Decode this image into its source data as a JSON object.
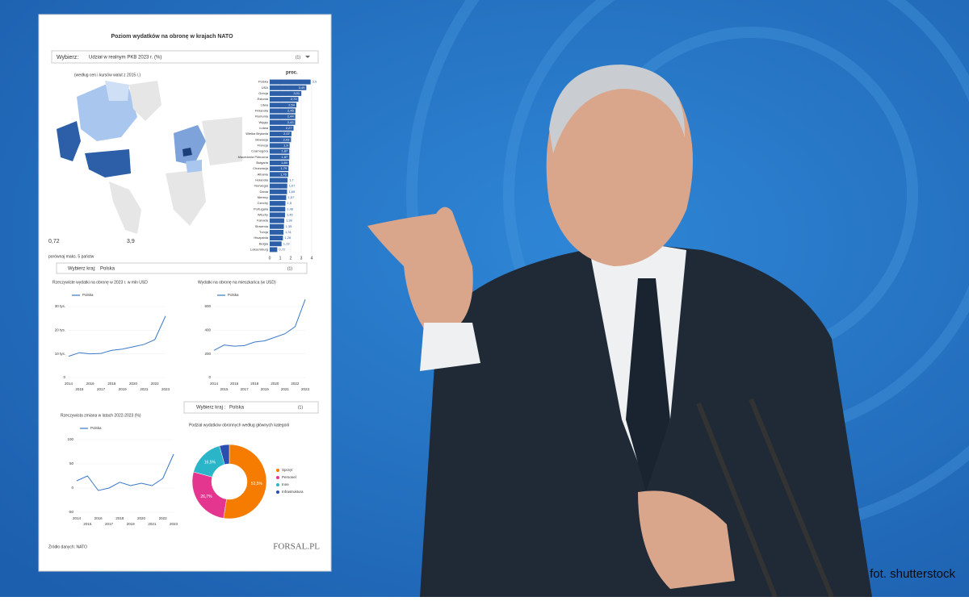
{
  "photo_credit": "fot. shutterstock",
  "panel": {
    "title": "Poziom wydatków na obronę w krajach NATO",
    "selector": {
      "label": "Wybierz:",
      "value": "Udział w realnym PKB 2023 r. (%)",
      "count": "(1)"
    },
    "map_note": "(według cen i kursów walut z 2015 r.)",
    "map_min": "0,72",
    "map_max": "3,9",
    "compare_note": "porównaj maks. 5 państw",
    "country_selector": {
      "label": "Wybierz kraj:",
      "value": "Polska",
      "count": "(1)"
    },
    "country_selector_2": {
      "label": "Wybierz kraj :",
      "value": "Polska",
      "count": "(1)"
    },
    "source": "Źródło danych: NATO",
    "logo": "FORSAL.PL"
  },
  "chart_data": [
    {
      "type": "hbar",
      "xlabel": "proc.",
      "color": "#2c5fa8",
      "categories": [
        "Polska",
        "USA",
        "Grecja",
        "Estonia",
        "Litwa",
        "Finlandia",
        "Rumunia",
        "Węgry",
        "Łotwa",
        "Wielka Brytania",
        "Słowacja",
        "Francja",
        "Czarnogóra",
        "Macedonia Północna",
        "Bułgaria",
        "Chorwacja",
        "Albania",
        "Holandia",
        "Norwegia",
        "Dania",
        "Niemcy",
        "Czechy",
        "Portugalia",
        "Włochy",
        "Kanada",
        "Słowenia",
        "Turcja",
        "Hiszpania",
        "Belgia",
        "Luksemburg"
      ],
      "values": [
        3.9,
        3.49,
        3.01,
        2.73,
        2.54,
        2.45,
        2.44,
        2.43,
        2.27,
        2.07,
        2.03,
        1.9,
        1.87,
        1.87,
        1.84,
        1.79,
        1.76,
        1.7,
        1.67,
        1.65,
        1.57,
        1.5,
        1.48,
        1.46,
        1.38,
        1.35,
        1.31,
        1.26,
        1.13,
        0.72
      ],
      "value_labels": [
        "3,9",
        "3,49",
        "3,01",
        "2,73",
        "2,54",
        "2,45",
        "2,44",
        "2,43",
        "2,27",
        "2,07",
        "2,03",
        "1,9",
        "1,87",
        "1,87",
        "1,84",
        "1,79",
        "1,76",
        "1,7",
        "1,67",
        "1,65",
        "1,57",
        "1,5",
        "1,48",
        "1,46",
        "1,38",
        "1,35",
        "1,31",
        "1,26",
        "1,13",
        "0,72"
      ],
      "xlim": [
        0,
        4
      ],
      "xticks": [
        0,
        1,
        2,
        3,
        4
      ]
    },
    {
      "type": "line",
      "title": "Rzeczywiste wydatki na obronę w 2023 r. w mln USD",
      "categories": [
        "2014",
        "2015",
        "2016",
        "2017",
        "2018",
        "2019",
        "2020",
        "2021",
        "2022",
        "2023"
      ],
      "series": [
        {
          "name": "Polska",
          "color": "#3a78c8",
          "values": [
            9000,
            10500,
            10000,
            10200,
            11500,
            12000,
            13000,
            14000,
            16000,
            26000
          ]
        }
      ],
      "ylim": [
        0,
        30000
      ],
      "yticks": [
        0,
        {
          "value": 10000,
          "label": "10 tys."
        },
        {
          "value": 20000,
          "label": "20 tys."
        },
        {
          "value": 30000,
          "label": "30 tys."
        }
      ]
    },
    {
      "type": "line",
      "title": "Wydatki na obronę na mieszkańca (w USD)",
      "categories": [
        "2014",
        "2015",
        "2016",
        "2017",
        "2018",
        "2019",
        "2020",
        "2021",
        "2022",
        "2023"
      ],
      "series": [
        {
          "name": "Polska",
          "color": "#3a78c8",
          "values": [
            230,
            275,
            265,
            270,
            300,
            310,
            340,
            370,
            430,
            660
          ]
        }
      ],
      "ylim": [
        0,
        600
      ],
      "yticks": [
        0,
        200,
        400,
        600
      ]
    },
    {
      "type": "line",
      "title": "Rzeczywista zmiana w latach 2022-2023 (%)",
      "categories": [
        "2014",
        "2015",
        "2016",
        "2017",
        "2018",
        "2019",
        "2020",
        "2021",
        "2022",
        "2023"
      ],
      "series": [
        {
          "name": "Polska",
          "color": "#3a78c8",
          "values": [
            15,
            25,
            -5,
            0,
            12,
            5,
            10,
            5,
            20,
            70
          ]
        }
      ],
      "ylim": [
        -50,
        100
      ],
      "yticks": [
        -50,
        0,
        50,
        100
      ]
    },
    {
      "type": "pie",
      "title": "Podział wydatków obronnych według głównych kategorii",
      "categories": [
        "Sprzęt",
        "Personel",
        "Inne",
        "Infrastruktura"
      ],
      "values": [
        52.5,
        26.7,
        16.5,
        4.3
      ],
      "value_labels": [
        "52,5%",
        "26,7%",
        "16,5%",
        null
      ],
      "colors": [
        "#f57c00",
        "#e4368f",
        "#2bb5c8",
        "#2a4fb0"
      ]
    }
  ]
}
